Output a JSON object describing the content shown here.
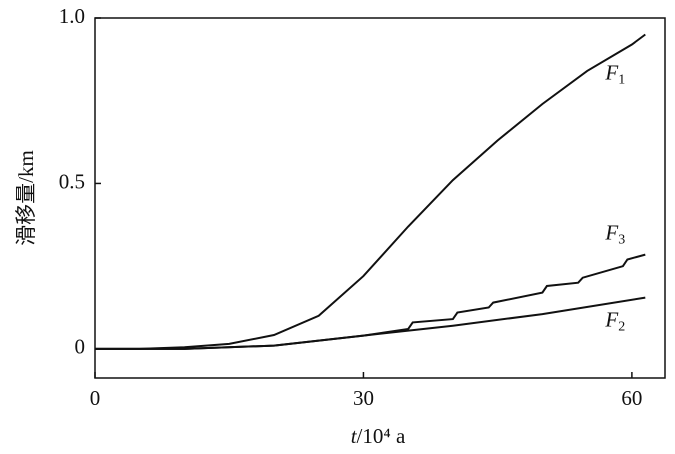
{
  "chart_data": {
    "type": "line",
    "x_label": "t/10⁴ a",
    "y_label": "滑移量/km",
    "xlim": [
      0,
      63.7
    ],
    "ylim": [
      -0.088,
      1.0
    ],
    "xticks": [
      0,
      30,
      60
    ],
    "yticks": [
      0,
      0.5,
      {
        "value": 1,
        "label": "1.0"
      }
    ],
    "series": [
      {
        "name": "F1",
        "color": "#111111",
        "x": [
          0,
          5,
          10,
          15,
          20,
          25,
          30,
          35,
          40,
          45,
          50,
          55,
          60,
          61.5
        ],
        "values": [
          0,
          0,
          0.005,
          0.015,
          0.042,
          0.1,
          0.22,
          0.37,
          0.51,
          0.63,
          0.74,
          0.84,
          0.92,
          0.95
        ]
      },
      {
        "name": "F2",
        "color": "#111111",
        "x": [
          0,
          10,
          20,
          30,
          40,
          50,
          61.5
        ],
        "values": [
          0,
          0,
          0.01,
          0.04,
          0.07,
          0.105,
          0.155
        ]
      },
      {
        "name": "F3",
        "color": "#111111",
        "x": [
          0,
          10,
          20,
          30,
          35,
          35.5,
          40,
          40.5,
          44,
          44.5,
          50,
          50.5,
          54,
          54.5,
          59,
          59.5,
          61.5
        ],
        "values": [
          0,
          0,
          0.01,
          0.04,
          0.06,
          0.08,
          0.09,
          0.11,
          0.125,
          0.14,
          0.17,
          0.19,
          0.2,
          0.215,
          0.25,
          0.27,
          0.285
        ]
      }
    ]
  }
}
